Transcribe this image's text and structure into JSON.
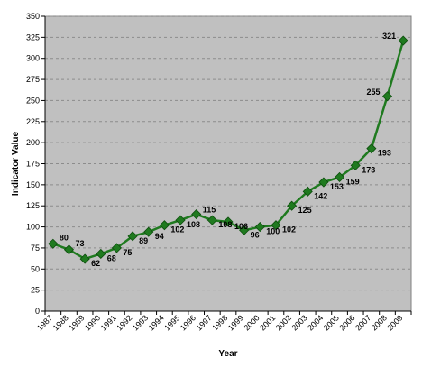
{
  "chart_data": {
    "type": "line",
    "title": "",
    "xlabel": "Year",
    "ylabel": "Indicator Value",
    "ylim": [
      0,
      350
    ],
    "y_ticks": [
      0,
      25,
      50,
      75,
      100,
      125,
      150,
      175,
      200,
      225,
      250,
      275,
      300,
      325,
      350
    ],
    "grid": "horizontal dashed",
    "legend": "none",
    "colors": {
      "plot_background": "#c0c0c0",
      "line": "#1f7a1f",
      "marker": "#1f7a1f",
      "grid": "#8c8c8c"
    },
    "categories": [
      "1987",
      "1988",
      "1989",
      "1990",
      "1991",
      "1992",
      "1993",
      "1994",
      "1995",
      "1996",
      "1997",
      "1998",
      "1999",
      "2000",
      "2001",
      "2002",
      "2003",
      "2004",
      "2005",
      "2006",
      "2007",
      "2008",
      "2009"
    ],
    "series": [
      {
        "values": [
          80,
          73,
          62,
          68,
          75,
          89,
          94,
          102,
          108,
          115,
          108,
          106,
          96,
          100,
          102,
          125,
          142,
          153,
          159,
          173,
          193,
          255,
          321
        ],
        "data_labels": [
          "80",
          "73",
          "62",
          "68",
          "75",
          "89",
          "94",
          "102",
          "108",
          "115",
          "108",
          "106",
          "96",
          "100",
          "102",
          "125",
          "142",
          "153",
          "159",
          "173",
          "193",
          "255",
          "321"
        ]
      }
    ]
  }
}
